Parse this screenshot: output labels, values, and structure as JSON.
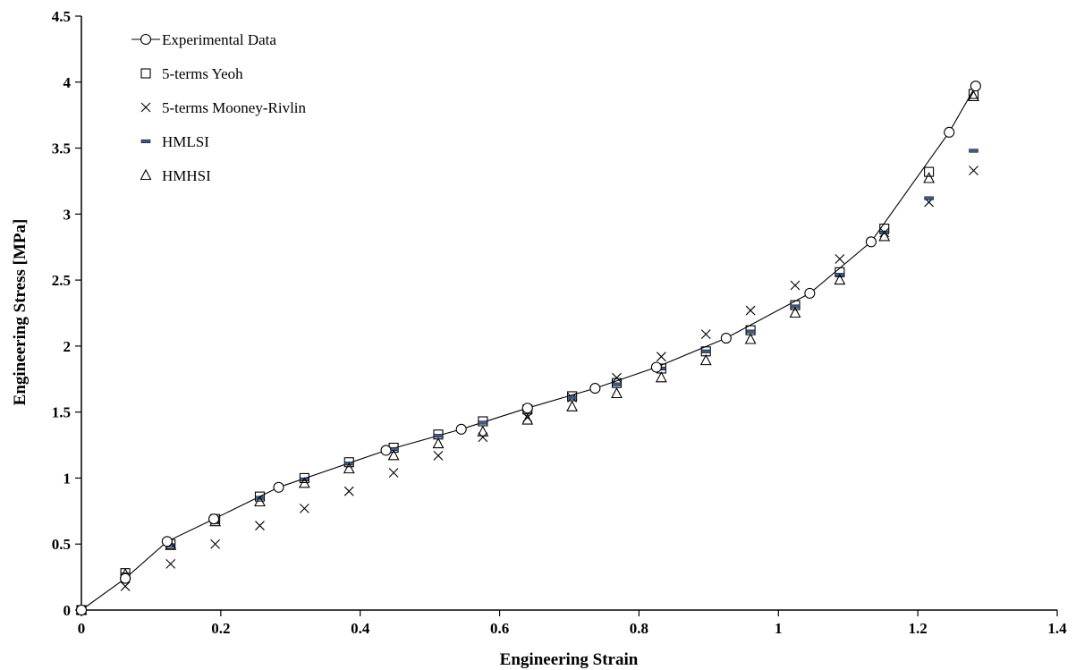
{
  "chart_data": {
    "type": "scatter",
    "xlabel": "Engineering Strain",
    "ylabel": "Engineering Stress [MPa]",
    "xlim": [
      0,
      1.4
    ],
    "ylim": [
      0,
      4.5
    ],
    "x_ticks": [
      "0",
      "0.2",
      "0.4",
      "0.6",
      "0.8",
      "1",
      "1.2",
      "1.4"
    ],
    "y_ticks": [
      "0",
      "0.5",
      "1",
      "1.5",
      "2",
      "2.5",
      "3",
      "3.5",
      "4",
      "4.5"
    ],
    "grid": false,
    "legend_position": "top-left",
    "series": [
      {
        "name": "Experimental Data",
        "marker": "circle",
        "line": true,
        "points": [
          [
            0,
            0
          ],
          [
            0.063,
            0.24
          ],
          [
            0.123,
            0.52
          ],
          [
            0.19,
            0.69
          ],
          [
            0.283,
            0.93
          ],
          [
            0.437,
            1.21
          ],
          [
            0.545,
            1.37
          ],
          [
            0.64,
            1.53
          ],
          [
            0.737,
            1.68
          ],
          [
            0.825,
            1.84
          ],
          [
            0.925,
            2.06
          ],
          [
            1.045,
            2.4
          ],
          [
            1.133,
            2.79
          ],
          [
            1.245,
            3.62
          ],
          [
            1.283,
            3.97
          ]
        ]
      },
      {
        "name": "5-terms Yeoh",
        "marker": "square",
        "points": [
          [
            0,
            0
          ],
          [
            0.063,
            0.28
          ],
          [
            0.128,
            0.5
          ],
          [
            0.192,
            0.69
          ],
          [
            0.256,
            0.86
          ],
          [
            0.32,
            1.0
          ],
          [
            0.384,
            1.12
          ],
          [
            0.448,
            1.23
          ],
          [
            0.512,
            1.33
          ],
          [
            0.576,
            1.43
          ],
          [
            0.64,
            1.52
          ],
          [
            0.704,
            1.62
          ],
          [
            0.768,
            1.72
          ],
          [
            0.832,
            1.83
          ],
          [
            0.896,
            1.96
          ],
          [
            0.96,
            2.12
          ],
          [
            1.024,
            2.31
          ],
          [
            1.088,
            2.56
          ],
          [
            1.152,
            2.89
          ],
          [
            1.216,
            3.32
          ],
          [
            1.28,
            3.91
          ]
        ]
      },
      {
        "name": "5-terms Mooney-Rivlin",
        "marker": "x",
        "points": [
          [
            0,
            0
          ],
          [
            0.063,
            0.18
          ],
          [
            0.128,
            0.35
          ],
          [
            0.192,
            0.5
          ],
          [
            0.256,
            0.64
          ],
          [
            0.32,
            0.77
          ],
          [
            0.384,
            0.9
          ],
          [
            0.448,
            1.04
          ],
          [
            0.512,
            1.17
          ],
          [
            0.576,
            1.31
          ],
          [
            0.64,
            1.46
          ],
          [
            0.704,
            1.61
          ],
          [
            0.768,
            1.76
          ],
          [
            0.832,
            1.92
          ],
          [
            0.896,
            2.09
          ],
          [
            0.96,
            2.27
          ],
          [
            1.024,
            2.46
          ],
          [
            1.088,
            2.66
          ],
          [
            1.152,
            2.86
          ],
          [
            1.216,
            3.09
          ],
          [
            1.28,
            3.33
          ]
        ]
      },
      {
        "name": "HMLSI",
        "marker": "dash",
        "points": [
          [
            0,
            0
          ],
          [
            0.063,
            0.27
          ],
          [
            0.128,
            0.49
          ],
          [
            0.192,
            0.68
          ],
          [
            0.256,
            0.85
          ],
          [
            0.32,
            0.99
          ],
          [
            0.384,
            1.11
          ],
          [
            0.448,
            1.22
          ],
          [
            0.512,
            1.32
          ],
          [
            0.576,
            1.42
          ],
          [
            0.64,
            1.51
          ],
          [
            0.704,
            1.61
          ],
          [
            0.768,
            1.71
          ],
          [
            0.832,
            1.83
          ],
          [
            0.896,
            1.96
          ],
          [
            0.96,
            2.11
          ],
          [
            1.024,
            2.3
          ],
          [
            1.088,
            2.54
          ],
          [
            1.152,
            2.86
          ],
          [
            1.216,
            3.12
          ],
          [
            1.28,
            3.48
          ]
        ]
      },
      {
        "name": "HMHSI",
        "marker": "triangle",
        "points": [
          [
            0,
            0
          ],
          [
            0.063,
            0.27
          ],
          [
            0.128,
            0.49
          ],
          [
            0.192,
            0.67
          ],
          [
            0.256,
            0.82
          ],
          [
            0.32,
            0.96
          ],
          [
            0.384,
            1.07
          ],
          [
            0.448,
            1.17
          ],
          [
            0.512,
            1.26
          ],
          [
            0.576,
            1.35
          ],
          [
            0.64,
            1.44
          ],
          [
            0.704,
            1.54
          ],
          [
            0.768,
            1.64
          ],
          [
            0.832,
            1.76
          ],
          [
            0.896,
            1.89
          ],
          [
            0.96,
            2.05
          ],
          [
            1.024,
            2.25
          ],
          [
            1.088,
            2.5
          ],
          [
            1.152,
            2.83
          ],
          [
            1.216,
            3.27
          ],
          [
            1.28,
            3.89
          ]
        ]
      }
    ]
  }
}
